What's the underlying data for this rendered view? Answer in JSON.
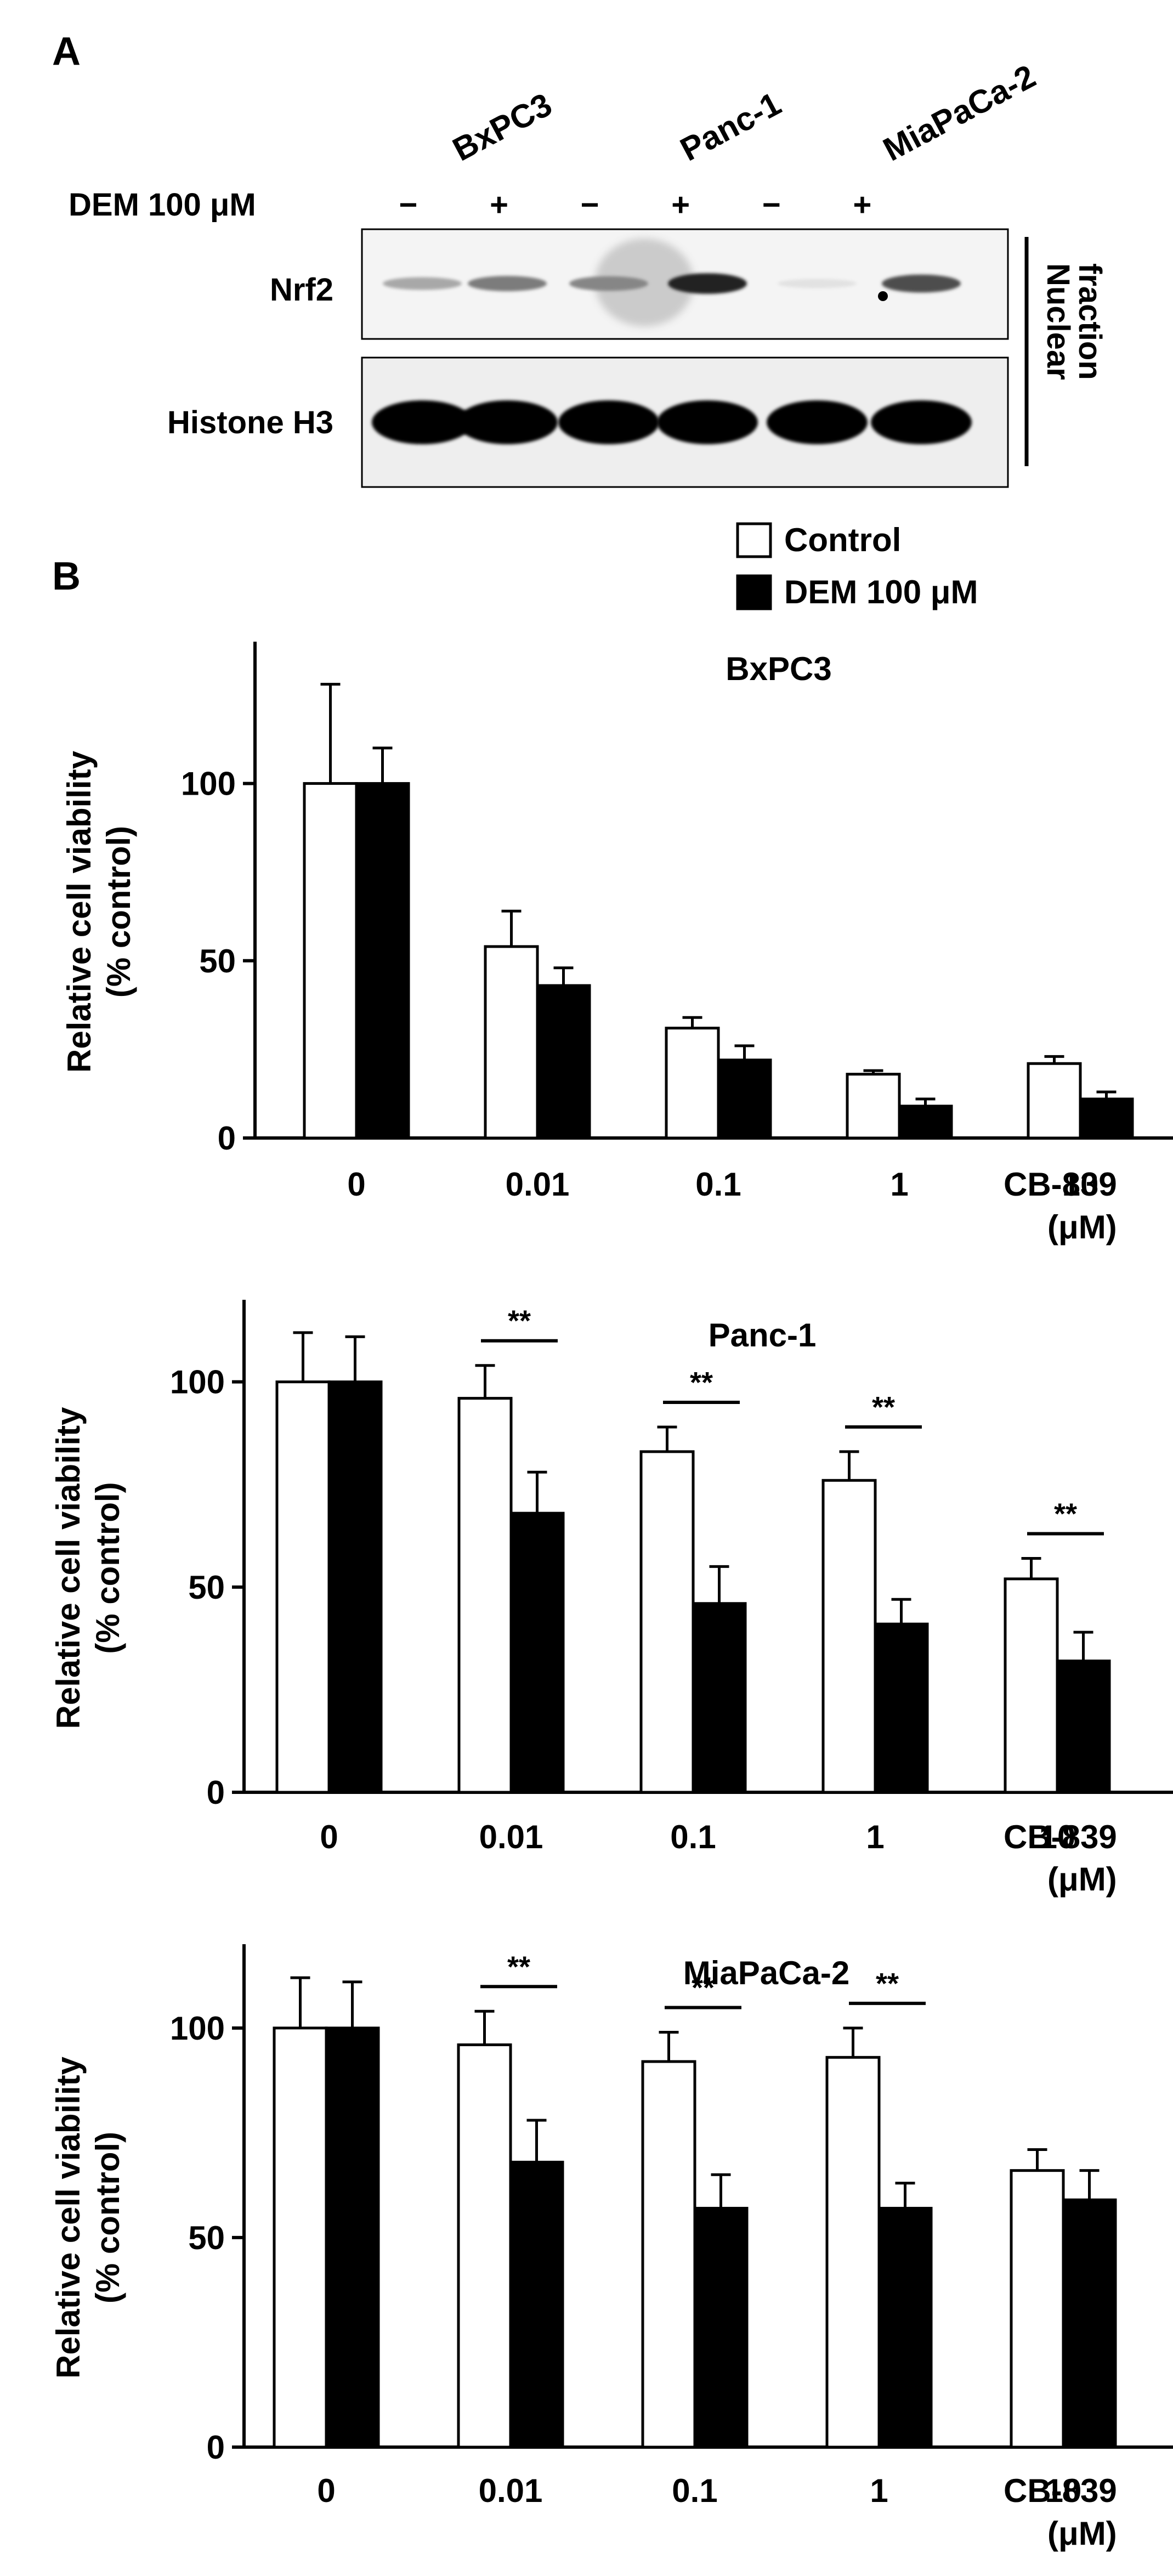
{
  "panel_a": {
    "label": "A",
    "cell_lines": [
      "BxPC3",
      "Panc-1",
      "MiaPaCa-2"
    ],
    "treatment_label": "DEM 100 μM",
    "lane_signs": [
      "−",
      "+",
      "−",
      "+",
      "−",
      "+"
    ],
    "rows": [
      {
        "label": "Nrf2",
        "intensities": [
          0.3,
          0.5,
          0.45,
          0.9,
          0.04,
          0.7
        ]
      },
      {
        "label": "Histone H3",
        "intensities": [
          1.0,
          1.0,
          1.0,
          1.0,
          1.0,
          1.0
        ]
      }
    ],
    "fraction_label_line1": "Nuclear",
    "fraction_label_line2": "fraction"
  },
  "panel_b": {
    "label": "B",
    "legend": [
      {
        "name": "Control",
        "color": "#ffffff"
      },
      {
        "name": "DEM 100 μM",
        "color": "#000000"
      }
    ],
    "ylabel_line1": "Relative cell viability",
    "ylabel_line2": "(% control)",
    "xlabel_line1": "CB-839",
    "xlabel_line2": "(μM)",
    "significance_label": "**"
  },
  "chart_data": [
    {
      "type": "bar",
      "title": "BxPC3",
      "categories": [
        "0",
        "0.01",
        "0.1",
        "1",
        "10"
      ],
      "series": [
        {
          "name": "Control",
          "values": [
            100,
            54,
            31,
            18,
            21
          ],
          "errors": [
            28,
            10,
            3,
            1,
            2
          ]
        },
        {
          "name": "DEM 100 μM",
          "values": [
            100,
            43,
            22,
            9,
            11
          ],
          "errors": [
            10,
            5,
            4,
            2,
            2
          ]
        }
      ],
      "significance": [],
      "yticks": [
        0,
        50,
        100
      ],
      "ylim": [
        0,
        140
      ],
      "xlabel": "CB-839 (μM)",
      "ylabel": "Relative cell viability (% control)"
    },
    {
      "type": "bar",
      "title": "Panc-1",
      "categories": [
        "0",
        "0.01",
        "0.1",
        "1",
        "10"
      ],
      "series": [
        {
          "name": "Control",
          "values": [
            100,
            96,
            83,
            76,
            52
          ],
          "errors": [
            12,
            8,
            6,
            7,
            5
          ]
        },
        {
          "name": "DEM 100 μM",
          "values": [
            100,
            68,
            46,
            41,
            32
          ],
          "errors": [
            11,
            10,
            9,
            6,
            7
          ]
        }
      ],
      "significance": [
        "0.01",
        "0.1",
        "1",
        "10"
      ],
      "yticks": [
        0,
        50,
        100
      ],
      "ylim": [
        0,
        120
      ],
      "xlabel": "CB-839 (μM)",
      "ylabel": "Relative cell viability (% control)"
    },
    {
      "type": "bar",
      "title": "MiaPaCa-2",
      "categories": [
        "0",
        "0.01",
        "0.1",
        "1",
        "10"
      ],
      "series": [
        {
          "name": "Control",
          "values": [
            100,
            96,
            92,
            93,
            66
          ],
          "errors": [
            12,
            8,
            7,
            7,
            5
          ]
        },
        {
          "name": "DEM 100 μM",
          "values": [
            100,
            68,
            57,
            57,
            59
          ],
          "errors": [
            11,
            10,
            8,
            6,
            7
          ]
        }
      ],
      "significance": [
        "0.01",
        "0.1",
        "1"
      ],
      "yticks": [
        0,
        50,
        100
      ],
      "ylim": [
        0,
        120
      ],
      "xlabel": "CB-839 (μM)",
      "ylabel": "Relative cell viability (% control)"
    }
  ]
}
